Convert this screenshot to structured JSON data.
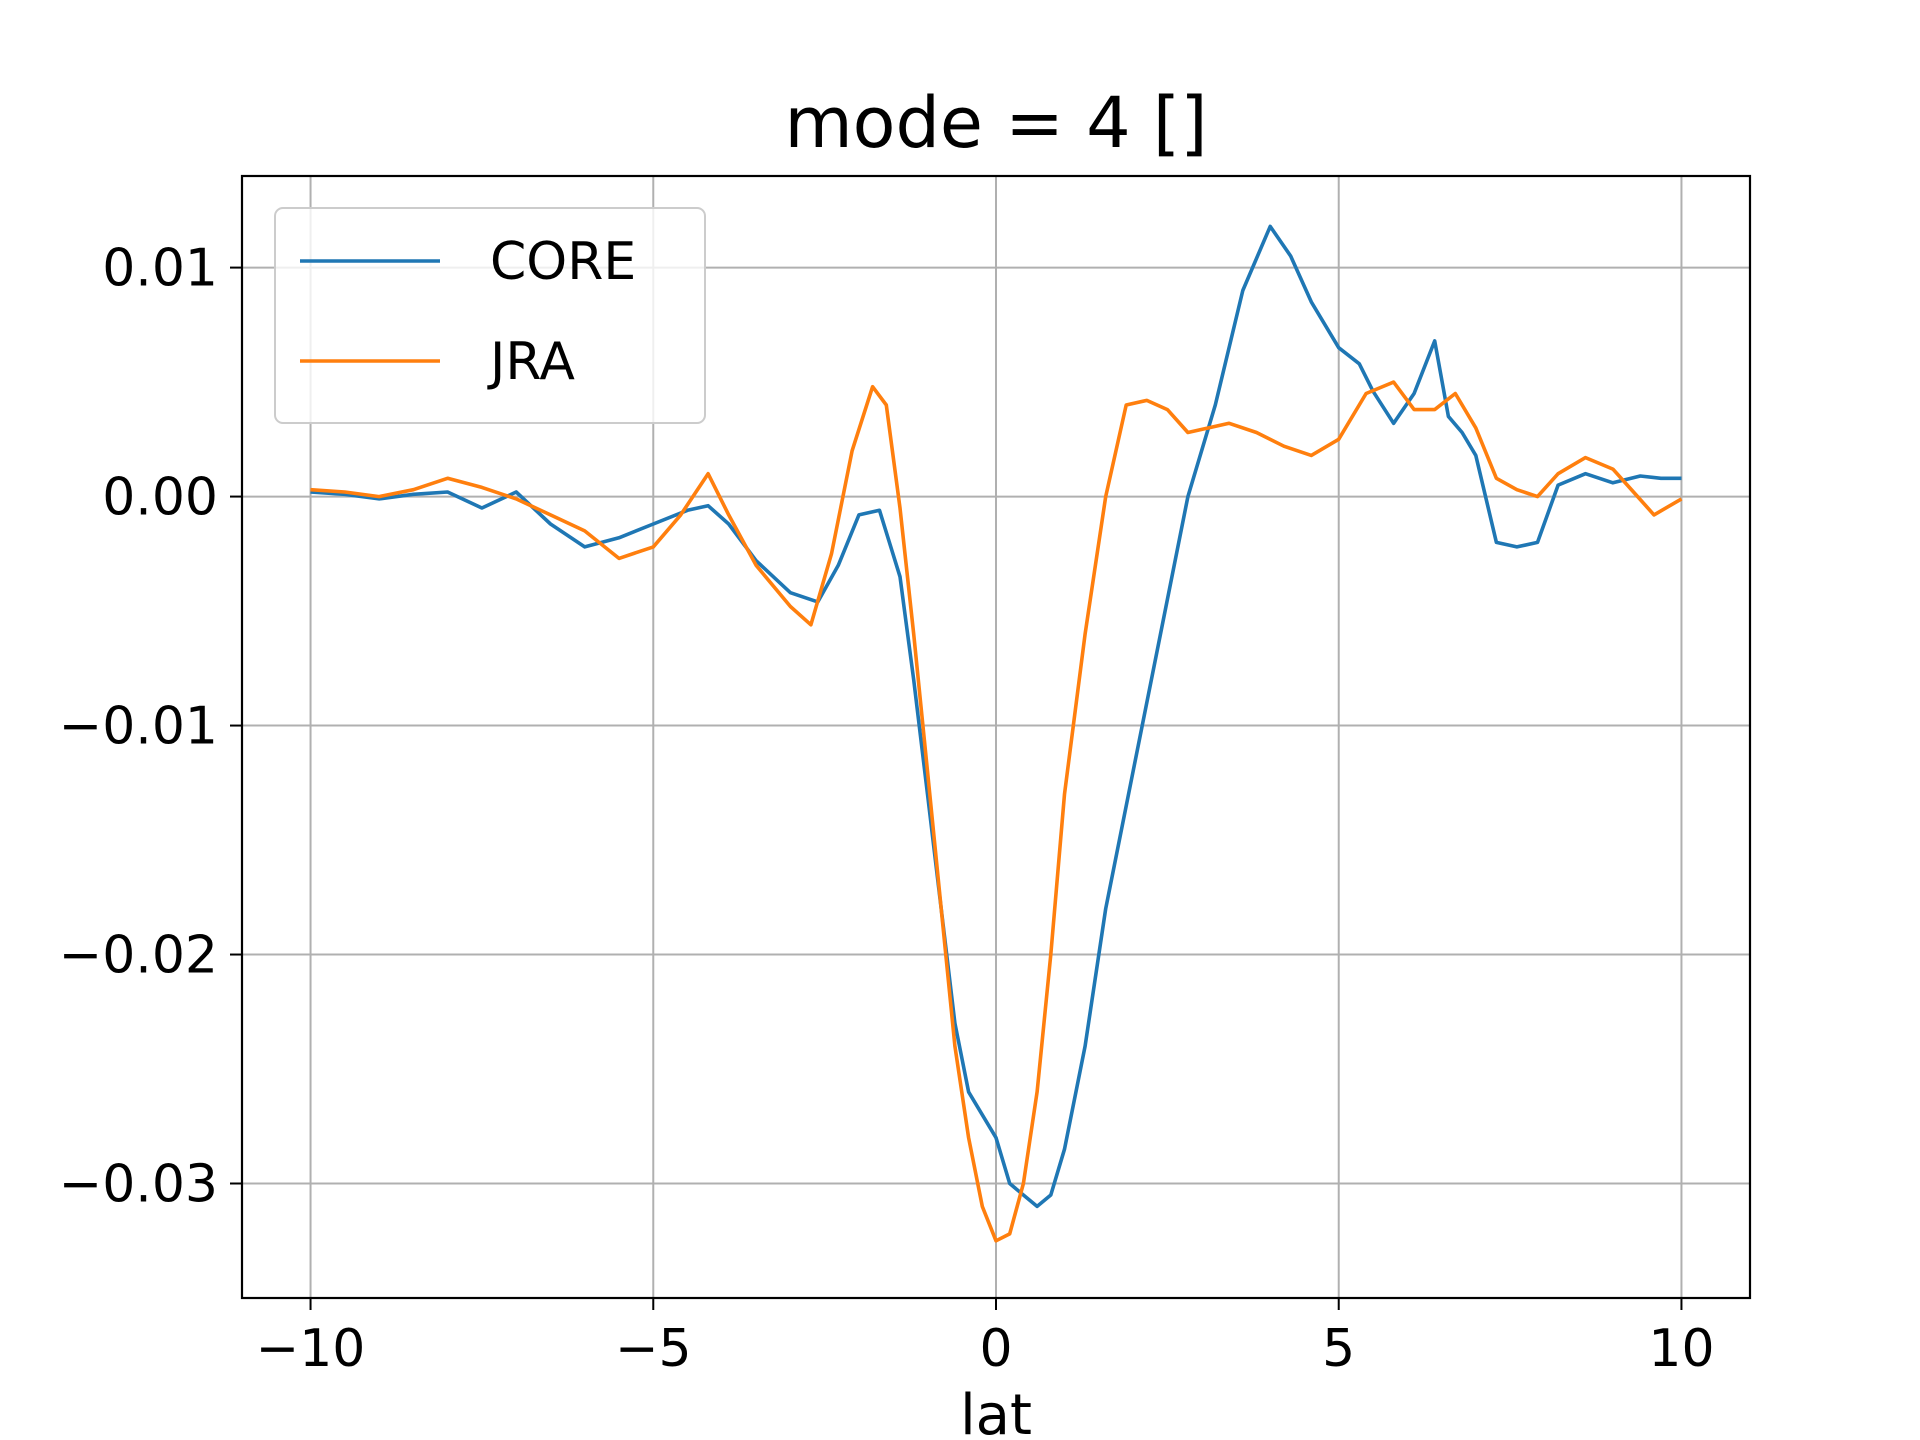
{
  "chart_data": {
    "type": "line",
    "title": "mode = 4 []",
    "xlabel": "lat",
    "ylabel": "",
    "xlim": [
      -11,
      11
    ],
    "ylim": [
      -0.035,
      0.014
    ],
    "xticks": [
      -10,
      -5,
      0,
      5,
      10
    ],
    "xtick_labels": [
      "−10",
      "−5",
      "0",
      "5",
      "10"
    ],
    "yticks": [
      -0.03,
      -0.02,
      -0.01,
      0.0,
      0.01
    ],
    "ytick_labels": [
      "−0.03",
      "−0.02",
      "−0.01",
      "0.00",
      "0.01"
    ],
    "grid": true,
    "legend_position": "upper-left",
    "series": [
      {
        "name": "CORE",
        "color": "#1f77b4",
        "x": [
          -10,
          -9.5,
          -9,
          -8.5,
          -8,
          -7.5,
          -7,
          -6.5,
          -6,
          -5.5,
          -5,
          -4.5,
          -4.2,
          -3.9,
          -3.5,
          -3,
          -2.6,
          -2.3,
          -2,
          -1.7,
          -1.4,
          -1.2,
          -1,
          -0.8,
          -0.6,
          -0.4,
          -0.2,
          0,
          0.2,
          0.4,
          0.6,
          0.8,
          1,
          1.3,
          1.6,
          2,
          2.4,
          2.8,
          3.2,
          3.6,
          4,
          4.3,
          4.6,
          5,
          5.3,
          5.5,
          5.8,
          6.1,
          6.4,
          6.6,
          6.8,
          7,
          7.3,
          7.6,
          7.9,
          8.2,
          8.6,
          9,
          9.4,
          9.7,
          10
        ],
        "y": [
          0.0002,
          0.0001,
          -0.0001,
          0.0001,
          0.0002,
          -0.0005,
          0.0002,
          -0.0012,
          -0.0022,
          -0.0018,
          -0.0012,
          -0.0006,
          -0.0004,
          -0.0012,
          -0.0028,
          -0.0042,
          -0.0046,
          -0.003,
          -0.0008,
          -0.0006,
          -0.0035,
          -0.008,
          -0.013,
          -0.018,
          -0.023,
          -0.026,
          -0.027,
          -0.028,
          -0.03,
          -0.0305,
          -0.031,
          -0.0305,
          -0.0285,
          -0.024,
          -0.018,
          -0.012,
          -0.006,
          0.0,
          0.004,
          0.009,
          0.0118,
          0.0105,
          0.0085,
          0.0065,
          0.0058,
          0.0046,
          0.0032,
          0.0045,
          0.0068,
          0.0035,
          0.0028,
          0.0018,
          -0.002,
          -0.0022,
          -0.002,
          0.0005,
          0.001,
          0.0006,
          0.0009,
          0.0008,
          0.0008
        ]
      },
      {
        "name": "JRA",
        "color": "#ff7f0e",
        "x": [
          -10,
          -9.5,
          -9,
          -8.5,
          -8,
          -7.5,
          -7,
          -6.5,
          -6,
          -5.5,
          -5,
          -4.6,
          -4.2,
          -3.9,
          -3.5,
          -3,
          -2.7,
          -2.4,
          -2.1,
          -1.8,
          -1.6,
          -1.4,
          -1.2,
          -1,
          -0.8,
          -0.6,
          -0.4,
          -0.2,
          0,
          0.2,
          0.4,
          0.6,
          0.8,
          1,
          1.3,
          1.6,
          1.9,
          2.2,
          2.5,
          2.8,
          3.1,
          3.4,
          3.8,
          4.2,
          4.6,
          5,
          5.4,
          5.8,
          6.1,
          6.4,
          6.7,
          7,
          7.3,
          7.6,
          7.9,
          8.2,
          8.6,
          9,
          9.3,
          9.6,
          10
        ],
        "y": [
          0.0003,
          0.0002,
          0.0,
          0.0003,
          0.0008,
          0.0004,
          -0.0001,
          -0.0008,
          -0.0015,
          -0.0027,
          -0.0022,
          -0.0008,
          0.001,
          -0.0008,
          -0.003,
          -0.0048,
          -0.0056,
          -0.0025,
          0.002,
          0.0048,
          0.004,
          -0.0005,
          -0.006,
          -0.012,
          -0.018,
          -0.024,
          -0.028,
          -0.031,
          -0.0325,
          -0.0322,
          -0.03,
          -0.026,
          -0.02,
          -0.013,
          -0.006,
          0.0,
          0.004,
          0.0042,
          0.0038,
          0.0028,
          0.003,
          0.0032,
          0.0028,
          0.0022,
          0.0018,
          0.0025,
          0.0045,
          0.005,
          0.0038,
          0.0038,
          0.0045,
          0.003,
          0.0008,
          0.0003,
          0.0,
          0.001,
          0.0017,
          0.0012,
          0.0002,
          -0.0008,
          -0.0001
        ]
      }
    ]
  }
}
